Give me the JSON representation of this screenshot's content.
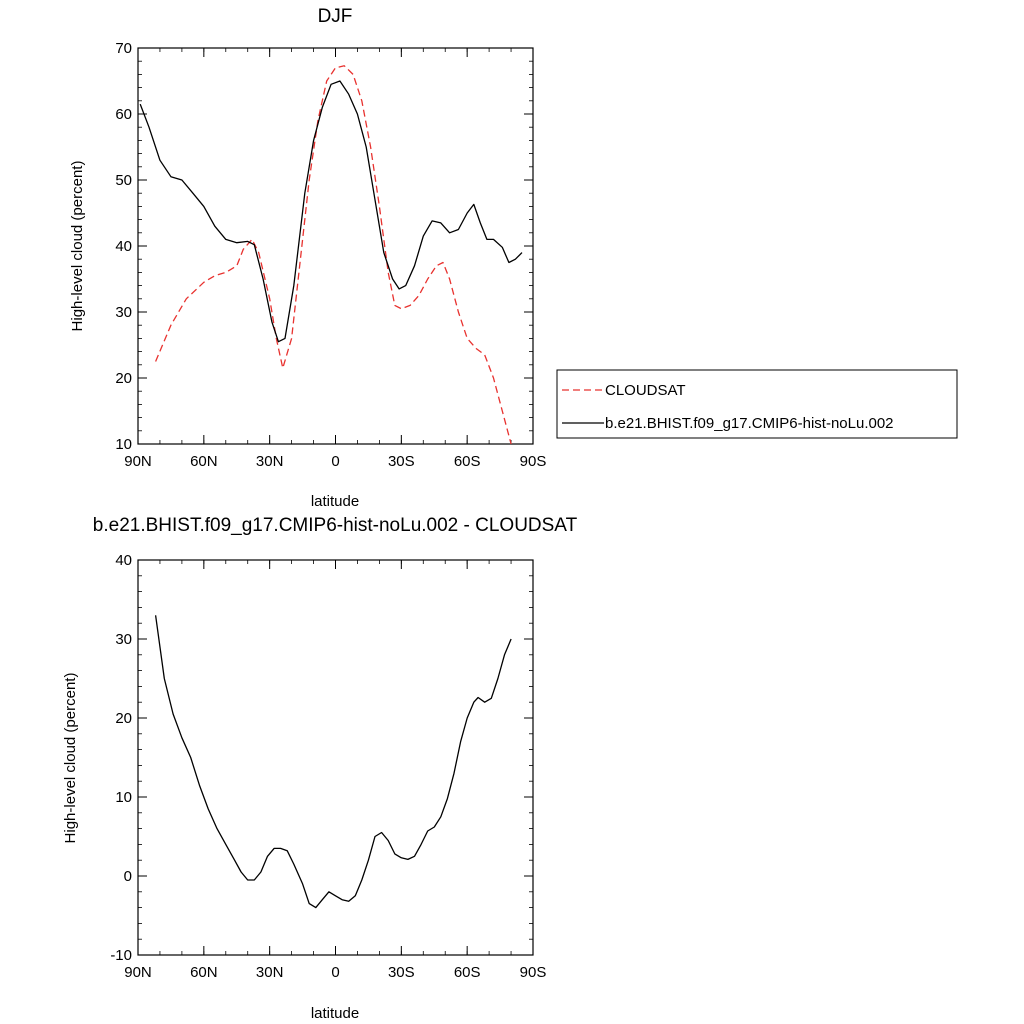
{
  "chart_data": [
    {
      "type": "line",
      "title": "DJF",
      "xlabel": "latitude",
      "ylabel": "High-level cloud (percent)",
      "xlim": [
        90,
        -90
      ],
      "ylim": [
        10,
        70
      ],
      "x_ticks": [
        90,
        60,
        30,
        0,
        -30,
        -60,
        -90
      ],
      "x_tick_labels": [
        "90N",
        "60N",
        "30N",
        "0",
        "30S",
        "60S",
        "90S"
      ],
      "y_ticks": [
        10,
        20,
        30,
        40,
        50,
        60,
        70
      ],
      "y_tick_labels": [
        "10",
        "20",
        "30",
        "40",
        "50",
        "60",
        "70"
      ],
      "legend_position": "right",
      "series": [
        {
          "name": "CLOUDSAT",
          "color": "#e8322f",
          "style": "dashed",
          "points": [
            [
              82,
              22.5
            ],
            [
              75,
              28
            ],
            [
              68,
              32
            ],
            [
              60,
              34.5
            ],
            [
              55,
              35.5
            ],
            [
              50,
              36
            ],
            [
              45,
              37
            ],
            [
              42,
              39.5
            ],
            [
              38,
              41
            ],
            [
              35,
              39
            ],
            [
              30,
              32
            ],
            [
              27,
              26
            ],
            [
              24,
              21.5
            ],
            [
              20,
              26
            ],
            [
              16,
              38
            ],
            [
              12,
              50
            ],
            [
              8,
              59
            ],
            [
              4,
              65
            ],
            [
              0,
              67
            ],
            [
              -4,
              67.3
            ],
            [
              -8,
              66
            ],
            [
              -12,
              62
            ],
            [
              -16,
              55
            ],
            [
              -20,
              46
            ],
            [
              -24,
              36
            ],
            [
              -27,
              31
            ],
            [
              -30,
              30.5
            ],
            [
              -34,
              31
            ],
            [
              -38,
              32.5
            ],
            [
              -42,
              35
            ],
            [
              -46,
              37
            ],
            [
              -49,
              37.5
            ],
            [
              -52,
              35
            ],
            [
              -56,
              30
            ],
            [
              -60,
              26
            ],
            [
              -64,
              24.5
            ],
            [
              -68,
              23.5
            ],
            [
              -72,
              20
            ],
            [
              -76,
              15
            ],
            [
              -80,
              10
            ]
          ]
        },
        {
          "name": "b.e21.BHIST.f09_g17.CMIP6-hist-noLu.002",
          "color": "#000000",
          "style": "solid",
          "points": [
            [
              89,
              61.5
            ],
            [
              85,
              58
            ],
            [
              80,
              53
            ],
            [
              75,
              50.5
            ],
            [
              70,
              50
            ],
            [
              65,
              48
            ],
            [
              60,
              46
            ],
            [
              55,
              43
            ],
            [
              50,
              41
            ],
            [
              45,
              40.5
            ],
            [
              40,
              40.7
            ],
            [
              37,
              40.2
            ],
            [
              33,
              35
            ],
            [
              29,
              28.5
            ],
            [
              26,
              25.5
            ],
            [
              23,
              26
            ],
            [
              19,
              34
            ],
            [
              14,
              48
            ],
            [
              10,
              56
            ],
            [
              6,
              61
            ],
            [
              2,
              64.5
            ],
            [
              -2,
              65
            ],
            [
              -6,
              63
            ],
            [
              -10,
              60
            ],
            [
              -14,
              55
            ],
            [
              -18,
              47
            ],
            [
              -22,
              39
            ],
            [
              -26,
              35
            ],
            [
              -29,
              33.5
            ],
            [
              -32,
              34
            ],
            [
              -36,
              37
            ],
            [
              -40,
              41.5
            ],
            [
              -44,
              43.8
            ],
            [
              -48,
              43.5
            ],
            [
              -52,
              42
            ],
            [
              -56,
              42.5
            ],
            [
              -60,
              45
            ],
            [
              -63,
              46.3
            ],
            [
              -66,
              43.5
            ],
            [
              -69,
              41
            ],
            [
              -72,
              41
            ],
            [
              -76,
              39.8
            ],
            [
              -79,
              37.5
            ],
            [
              -82,
              38
            ],
            [
              -85,
              39
            ]
          ]
        }
      ]
    },
    {
      "type": "line",
      "title": "b.e21.BHIST.f09_g17.CMIP6-hist-noLu.002 - CLOUDSAT",
      "xlabel": "latitude",
      "ylabel": "High-level cloud (percent)",
      "xlim": [
        90,
        -90
      ],
      "ylim": [
        -10,
        40
      ],
      "x_ticks": [
        90,
        60,
        30,
        0,
        -30,
        -60,
        -90
      ],
      "x_tick_labels": [
        "90N",
        "60N",
        "30N",
        "0",
        "30S",
        "60S",
        "90S"
      ],
      "y_ticks": [
        -10,
        0,
        10,
        20,
        30,
        40
      ],
      "y_tick_labels": [
        "-10",
        "0",
        "10",
        "20",
        "30",
        "40"
      ],
      "series": [
        {
          "color": "#000000",
          "style": "solid",
          "points": [
            [
              82,
              33
            ],
            [
              78,
              25
            ],
            [
              74,
              20.5
            ],
            [
              70,
              17.5
            ],
            [
              66,
              15
            ],
            [
              62,
              11.5
            ],
            [
              58,
              8.5
            ],
            [
              54,
              6
            ],
            [
              50,
              4
            ],
            [
              46,
              2
            ],
            [
              43,
              0.5
            ],
            [
              40,
              -0.5
            ],
            [
              37,
              -0.5
            ],
            [
              34,
              0.5
            ],
            [
              31,
              2.5
            ],
            [
              28,
              3.5
            ],
            [
              25,
              3.5
            ],
            [
              22,
              3.2
            ],
            [
              19,
              1.5
            ],
            [
              15,
              -1
            ],
            [
              12,
              -3.5
            ],
            [
              9,
              -4
            ],
            [
              6,
              -3
            ],
            [
              3,
              -2
            ],
            [
              0,
              -2.5
            ],
            [
              -3,
              -3
            ],
            [
              -6,
              -3.2
            ],
            [
              -9,
              -2.5
            ],
            [
              -12,
              -0.5
            ],
            [
              -15,
              2
            ],
            [
              -18,
              5
            ],
            [
              -21,
              5.5
            ],
            [
              -24,
              4.5
            ],
            [
              -27,
              2.8
            ],
            [
              -30,
              2.3
            ],
            [
              -33,
              2.1
            ],
            [
              -36,
              2.5
            ],
            [
              -39,
              4
            ],
            [
              -42,
              5.7
            ],
            [
              -45,
              6.2
            ],
            [
              -48,
              7.5
            ],
            [
              -51,
              9.8
            ],
            [
              -54,
              13
            ],
            [
              -57,
              17
            ],
            [
              -60,
              20
            ],
            [
              -63,
              22
            ],
            [
              -65,
              22.6
            ],
            [
              -68,
              22
            ],
            [
              -71,
              22.5
            ],
            [
              -74,
              25
            ],
            [
              -77,
              28
            ],
            [
              -80,
              30
            ]
          ]
        }
      ]
    }
  ]
}
